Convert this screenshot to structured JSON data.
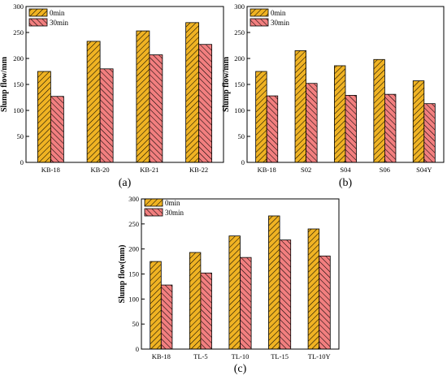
{
  "colors": {
    "s0": "#f0b323",
    "s30": "#f27f7f",
    "stroke": "#000000"
  },
  "legend_labels": [
    "0min",
    "30min"
  ],
  "chart_data": [
    {
      "type": "bar",
      "panel_label": "(a)",
      "ylabel": "Slump flow/mm",
      "ylim": [
        0,
        300
      ],
      "yticks": [
        0,
        50,
        100,
        150,
        200,
        250,
        300
      ],
      "categories": [
        "KB-18",
        "KB-20",
        "KB-21",
        "KB-22"
      ],
      "series": [
        {
          "name": "0min",
          "values": [
            175,
            233,
            253,
            269
          ]
        },
        {
          "name": "30min",
          "values": [
            127,
            180,
            207,
            227
          ]
        }
      ],
      "legend": "top-left",
      "grid": false
    },
    {
      "type": "bar",
      "panel_label": "(b)",
      "ylabel": "Slump flow/mm",
      "ylim": [
        0,
        300
      ],
      "yticks": [
        0,
        50,
        100,
        150,
        200,
        250,
        300
      ],
      "categories": [
        "KB-18",
        "S02",
        "S04",
        "S06",
        "S04Y"
      ],
      "series": [
        {
          "name": "0min",
          "values": [
            175,
            215,
            186,
            198,
            157
          ]
        },
        {
          "name": "30min",
          "values": [
            128,
            152,
            129,
            131,
            113
          ]
        }
      ],
      "legend": "top-left",
      "grid": false
    },
    {
      "type": "bar",
      "panel_label": "(c)",
      "ylabel": "Slump flow(mm)",
      "ylim": [
        0,
        300
      ],
      "yticks": [
        0,
        50,
        100,
        150,
        200,
        250,
        300
      ],
      "categories": [
        "KB-18",
        "TL-5",
        "TL-10",
        "TL-15",
        "TL-10Y"
      ],
      "series": [
        {
          "name": "0min",
          "values": [
            175,
            193,
            226,
            266,
            240
          ]
        },
        {
          "name": "30min",
          "values": [
            128,
            152,
            183,
            218,
            186
          ]
        }
      ],
      "legend": "top-left",
      "grid": false
    }
  ]
}
